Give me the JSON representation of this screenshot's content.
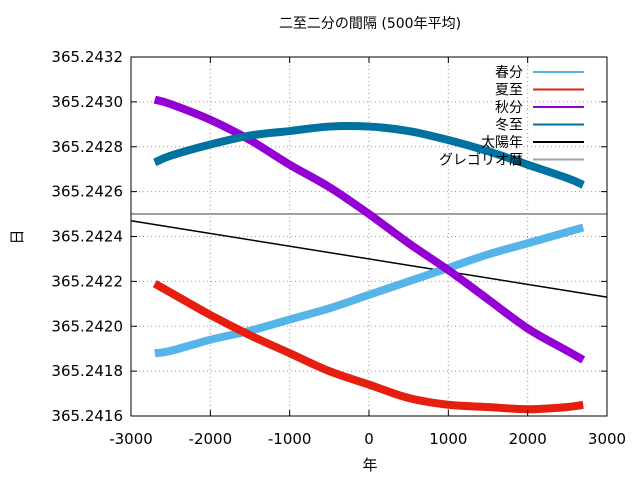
{
  "chart_data": {
    "type": "line",
    "title": "二至二分の間隔 (500年平均)",
    "xlabel": "年",
    "ylabel": "日",
    "xlim": [
      -3000,
      3000
    ],
    "ylim": [
      365.2416,
      365.2432
    ],
    "xticks": [
      -3000,
      -2000,
      -1000,
      0,
      1000,
      2000,
      3000
    ],
    "yticks": [
      365.2416,
      365.2418,
      365.242,
      365.2422,
      365.2424,
      365.2426,
      365.2428,
      365.243,
      365.2432
    ],
    "ytick_labels": [
      "365.2416",
      "365.2418",
      "365.2420",
      "365.2422",
      "365.2424",
      "365.2426",
      "365.2428",
      "365.2430",
      "365.2432"
    ],
    "grid": true,
    "legend_position": "top-right",
    "series": [
      {
        "name": "春分",
        "color": "#56b4e9",
        "style": "thick",
        "x": [
          -2700,
          -2500,
          -2000,
          -1500,
          -1000,
          -500,
          0,
          500,
          1000,
          1500,
          2000,
          2500,
          2700
        ],
        "y": [
          365.24188,
          365.24189,
          365.24194,
          365.24198,
          365.24203,
          365.24208,
          365.24214,
          365.2422,
          365.24226,
          365.24232,
          365.24237,
          365.24242,
          365.24244
        ]
      },
      {
        "name": "夏至",
        "color": "#e51e10",
        "style": "thick",
        "x": [
          -2700,
          -2500,
          -2000,
          -1500,
          -1000,
          -500,
          0,
          500,
          1000,
          1500,
          2000,
          2500,
          2700
        ],
        "y": [
          365.24219,
          365.24215,
          365.24205,
          365.24196,
          365.24188,
          365.2418,
          365.24174,
          365.24168,
          365.24165,
          365.24164,
          365.24163,
          365.24164,
          365.24165
        ]
      },
      {
        "name": "秋分",
        "color": "#9400d3",
        "style": "thick",
        "x": [
          -2700,
          -2500,
          -2000,
          -1500,
          -1000,
          -500,
          0,
          500,
          1000,
          1500,
          2000,
          2500,
          2700
        ],
        "y": [
          365.24301,
          365.24299,
          365.24292,
          365.24283,
          365.24272,
          365.24262,
          365.2425,
          365.24237,
          365.24225,
          365.24212,
          365.24199,
          365.24189,
          365.24185
        ]
      },
      {
        "name": "冬至",
        "color": "#0072a0",
        "style": "thick",
        "x": [
          -2700,
          -2500,
          -2000,
          -1500,
          -1000,
          -500,
          0,
          500,
          1000,
          1500,
          2000,
          2500,
          2700
        ],
        "y": [
          365.24273,
          365.24276,
          365.24281,
          365.24285,
          365.24287,
          365.24289,
          365.24289,
          365.24287,
          365.24283,
          365.24278,
          365.24272,
          365.24266,
          365.24263
        ]
      },
      {
        "name": "太陽年",
        "color": "#000000",
        "style": "thin",
        "x": [
          -3000,
          3000
        ],
        "y": [
          365.24247,
          365.24213
        ]
      },
      {
        "name": "グレゴリオ暦",
        "color": "#a0a0a0",
        "style": "medium",
        "x": [
          -3000,
          3000
        ],
        "y": [
          365.2425,
          365.2425
        ]
      }
    ]
  }
}
